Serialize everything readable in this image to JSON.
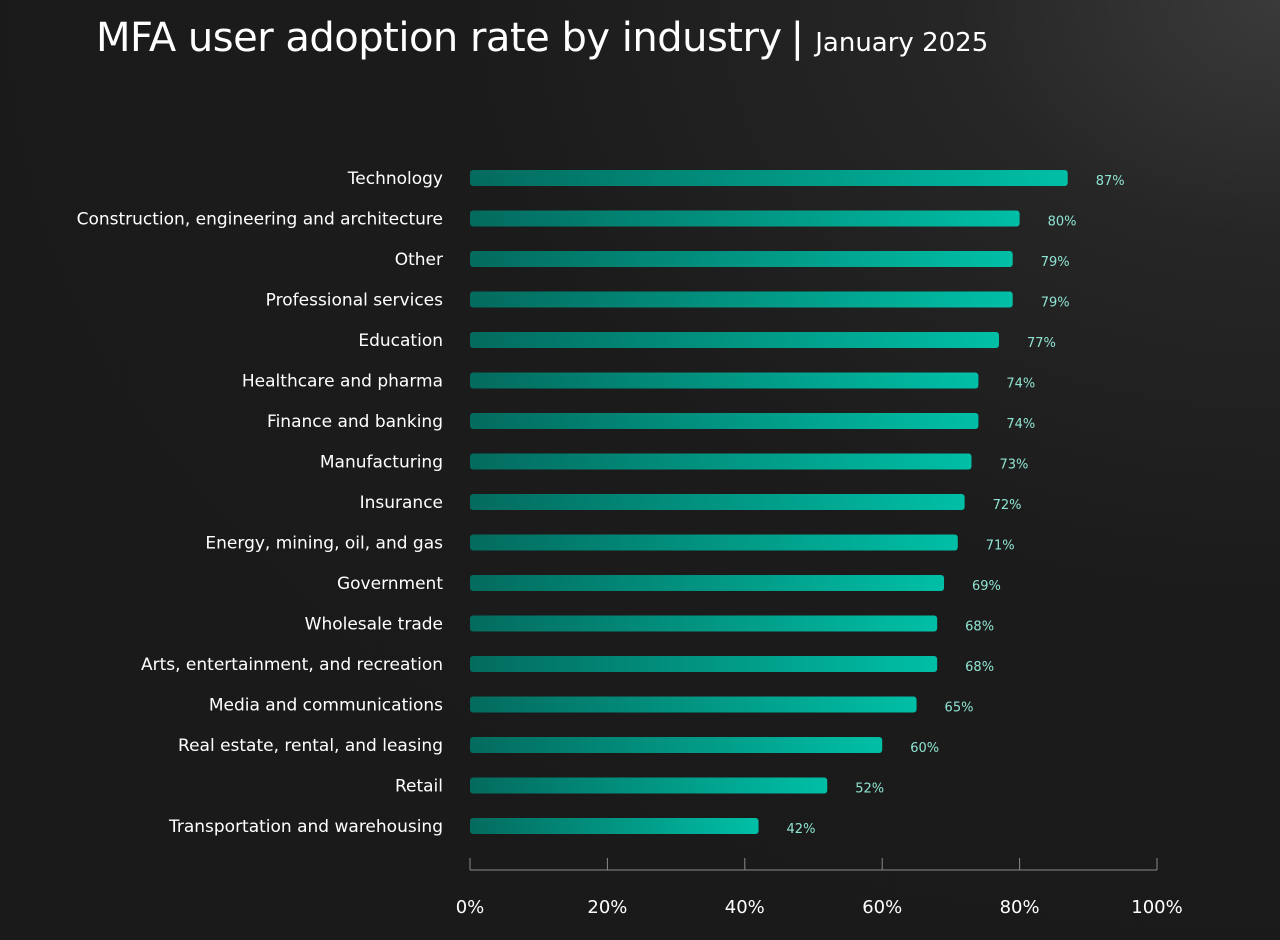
{
  "title": "MFA user adoption rate by industry",
  "title_separator": "|",
  "subtitle": "January 2025",
  "colors": {
    "bar_start": "#036b5e",
    "bar_end": "#00bfa6",
    "value_label": "#8fe3d2",
    "axis": "#8a8a8a",
    "text": "#ffffff"
  },
  "chart_data": {
    "type": "bar",
    "orientation": "horizontal",
    "title": "MFA user adoption rate by industry",
    "subtitle": "January 2025",
    "categories": [
      "Technology",
      "Construction, engineering and architecture",
      "Other",
      "Professional services",
      "Education",
      "Healthcare and pharma",
      "Finance and banking",
      "Manufacturing",
      "Insurance",
      "Energy, mining, oil, and gas",
      "Government",
      "Wholesale trade",
      "Arts, entertainment, and recreation",
      "Media and communications",
      "Real estate, rental, and leasing",
      "Retail",
      "Transportation and warehousing"
    ],
    "values": [
      87,
      80,
      79,
      79,
      77,
      74,
      74,
      73,
      72,
      71,
      69,
      68,
      68,
      65,
      60,
      52,
      42
    ],
    "value_labels": [
      "87%",
      "80%",
      "79%",
      "79%",
      "77%",
      "74%",
      "74%",
      "73%",
      "72%",
      "71%",
      "69%",
      "68%",
      "68%",
      "65%",
      "60%",
      "52%",
      "42%"
    ],
    "xlabel": "",
    "ylabel": "",
    "xlim": [
      0,
      100
    ],
    "xticks": [
      0,
      20,
      40,
      60,
      80,
      100
    ],
    "xtick_labels": [
      "0%",
      "20%",
      "40%",
      "60%",
      "80%",
      "100%"
    ],
    "grid": false,
    "legend": "none"
  }
}
